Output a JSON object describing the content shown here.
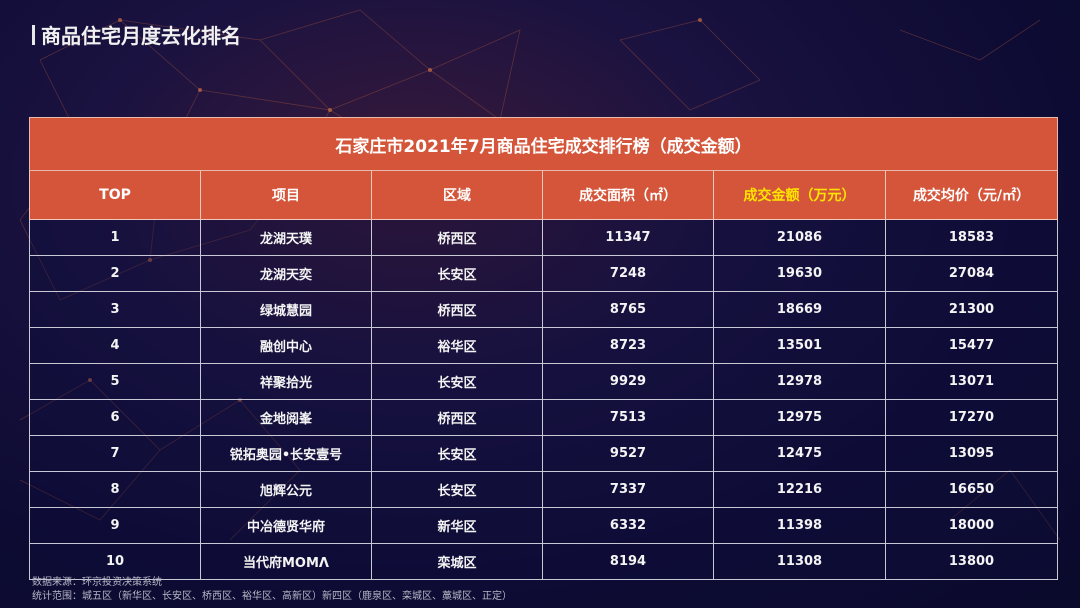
{
  "page": {
    "title": "商品住宅月度去化排名"
  },
  "table": {
    "caption": "石家庄市2021年7月商品住宅成交排行榜（成交金额）",
    "headers": [
      "TOP",
      "项目",
      "区域",
      "成交面积（㎡）",
      "成交金额（万元）",
      "成交均价（元/㎡）"
    ],
    "highlight_header_color": "#ffe400",
    "header_color": "#d4553a",
    "rows": [
      [
        "1",
        "龙湖天璞",
        "桥西区",
        "11347",
        "21086",
        "18583"
      ],
      [
        "2",
        "龙湖天奕",
        "长安区",
        "7248",
        "19630",
        "27084"
      ],
      [
        "3",
        "绿城慧园",
        "桥西区",
        "8765",
        "18669",
        "21300"
      ],
      [
        "4",
        "融创中心",
        "裕华区",
        "8723",
        "13501",
        "15477"
      ],
      [
        "5",
        "祥聚拾光",
        "长安区",
        "9929",
        "12978",
        "13071"
      ],
      [
        "6",
        "金地阅峯",
        "桥西区",
        "7513",
        "12975",
        "17270"
      ],
      [
        "7",
        "锐拓奥园•长安壹号",
        "长安区",
        "9527",
        "12475",
        "13095"
      ],
      [
        "8",
        "旭辉公元",
        "长安区",
        "7337",
        "12216",
        "16650"
      ],
      [
        "9",
        "中冶德贤华府",
        "新华区",
        "6332",
        "11398",
        "18000"
      ],
      [
        "10",
        "当代府MOMΛ",
        "栾城区",
        "8194",
        "11308",
        "13800"
      ]
    ]
  },
  "footer": {
    "source": "数据来源：环京投资决策系统",
    "scope": "统计范围：城五区（新华区、长安区、桥西区、裕华区、高新区）新四区（鹿泉区、栾城区、藁城区、正定）"
  }
}
